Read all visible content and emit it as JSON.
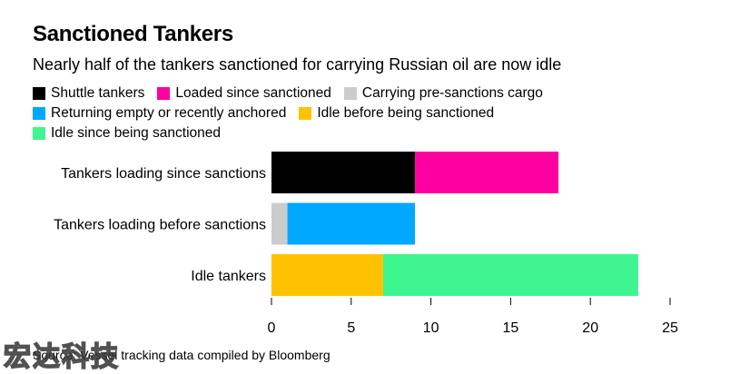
{
  "title": "Sanctioned Tankers",
  "subtitle": "Nearly half of the tankers sanctioned for carrying Russian oil are now idle",
  "legend": [
    [
      {
        "label": "Shuttle tankers",
        "color": "#000000"
      },
      {
        "label": "Loaded since sanctioned",
        "color": "#ff00a0"
      },
      {
        "label": "Carrying pre-sanctions cargo",
        "color": "#cccccc"
      }
    ],
    [
      {
        "label": "Returning empty or recently anchored",
        "color": "#00a8ff"
      },
      {
        "label": "Idle before being sanctioned",
        "color": "#ffc200"
      }
    ],
    [
      {
        "label": "Idle since being sanctioned",
        "color": "#3ff58f"
      }
    ]
  ],
  "source": "Source: Vessel tracking data compiled by Bloomberg",
  "watermark": "宏达科技",
  "chart_data": {
    "type": "bar",
    "orientation": "horizontal",
    "stacked": true,
    "categories": [
      "Tankers loading since sanctions",
      "Tankers loading before sanctions",
      "Idle tankers"
    ],
    "series": [
      {
        "name": "Shuttle tankers",
        "color": "#000000",
        "values": [
          9,
          0,
          0
        ]
      },
      {
        "name": "Loaded since sanctioned",
        "color": "#ff00a0",
        "values": [
          9,
          0,
          0
        ]
      },
      {
        "name": "Carrying pre-sanctions cargo",
        "color": "#cccccc",
        "values": [
          0,
          1,
          0
        ]
      },
      {
        "name": "Returning empty or recently anchored",
        "color": "#00a8ff",
        "values": [
          0,
          8,
          0
        ]
      },
      {
        "name": "Idle before being sanctioned",
        "color": "#ffc200",
        "values": [
          0,
          0,
          7
        ]
      },
      {
        "name": "Idle since being sanctioned",
        "color": "#3ff58f",
        "values": [
          0,
          0,
          16
        ]
      }
    ],
    "xlim": [
      0,
      25
    ],
    "xticks": [
      0,
      5,
      10,
      15,
      20,
      25
    ],
    "grid": false,
    "legend_position": "top"
  }
}
